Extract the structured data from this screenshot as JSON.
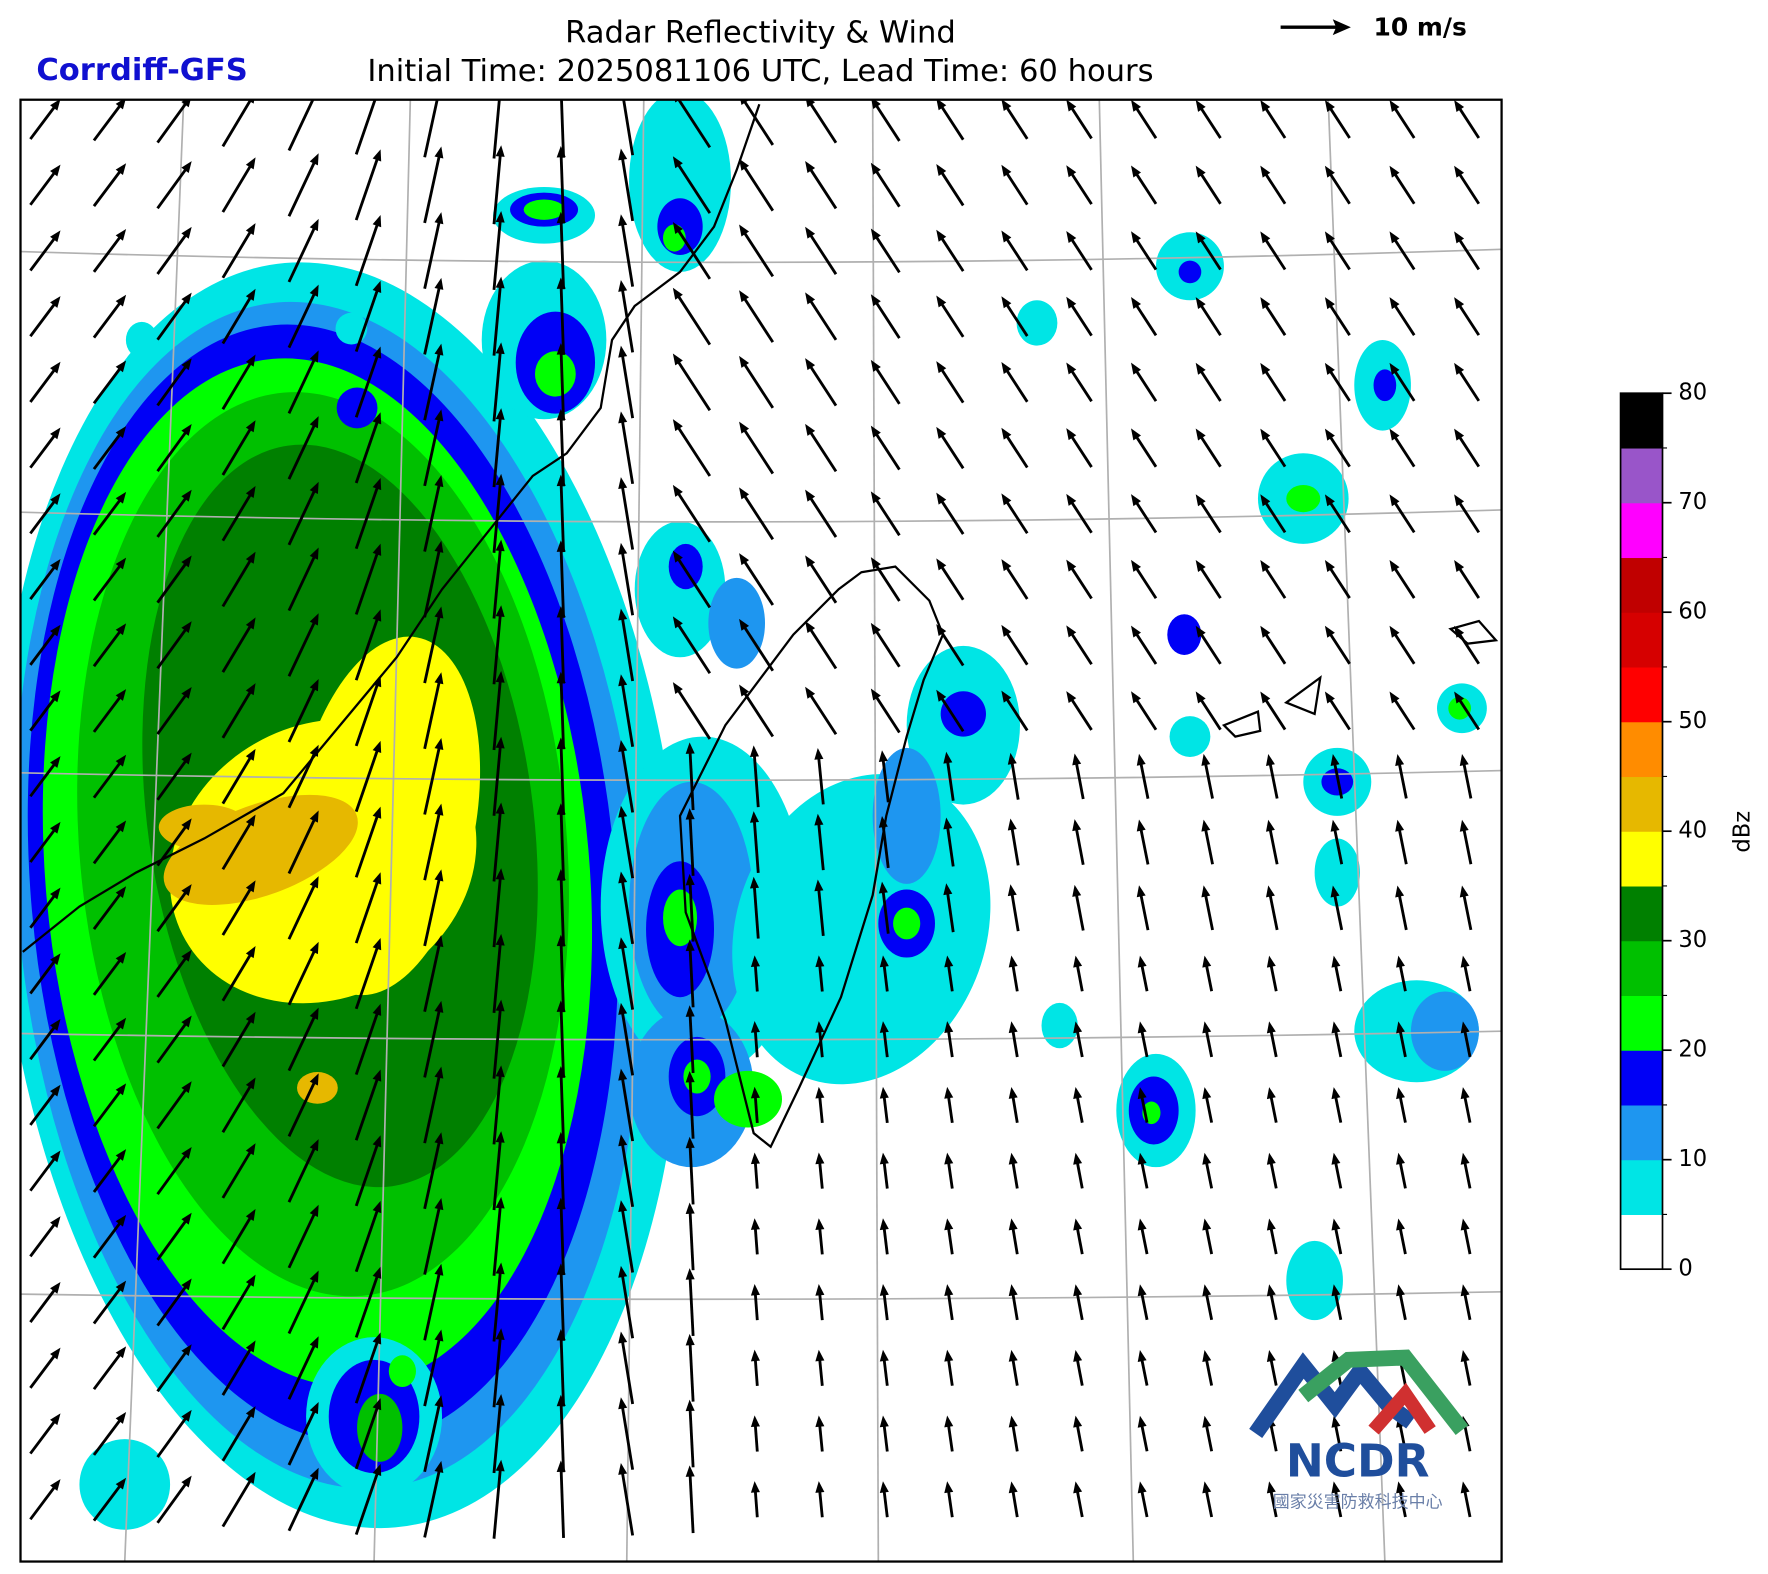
{
  "header": {
    "model": "Corrdiff-GFS",
    "title": "Radar Reflectivity & Wind",
    "subtitle": "Initial Time: 2025081106 UTC, Lead Time: 60 hours",
    "reference_vector": "10 m/s"
  },
  "colorbar": {
    "label": "dBz",
    "lim": [
      0,
      80
    ],
    "ticks": [
      0,
      10,
      20,
      30,
      40,
      50,
      60,
      70,
      80
    ],
    "colors": [
      "#ffffff",
      "#00e5e5",
      "#1e96f0",
      "#0000f6",
      "#00ff00",
      "#00c000",
      "#008000",
      "#ffff00",
      "#e6b800",
      "#ff8c00",
      "#ff0000",
      "#d60000",
      "#c00000",
      "#ff00ff",
      "#9955c9",
      "#000000"
    ]
  },
  "logo": {
    "name": "NCDR",
    "subtitle": "國家災害防救科技中心"
  }
}
